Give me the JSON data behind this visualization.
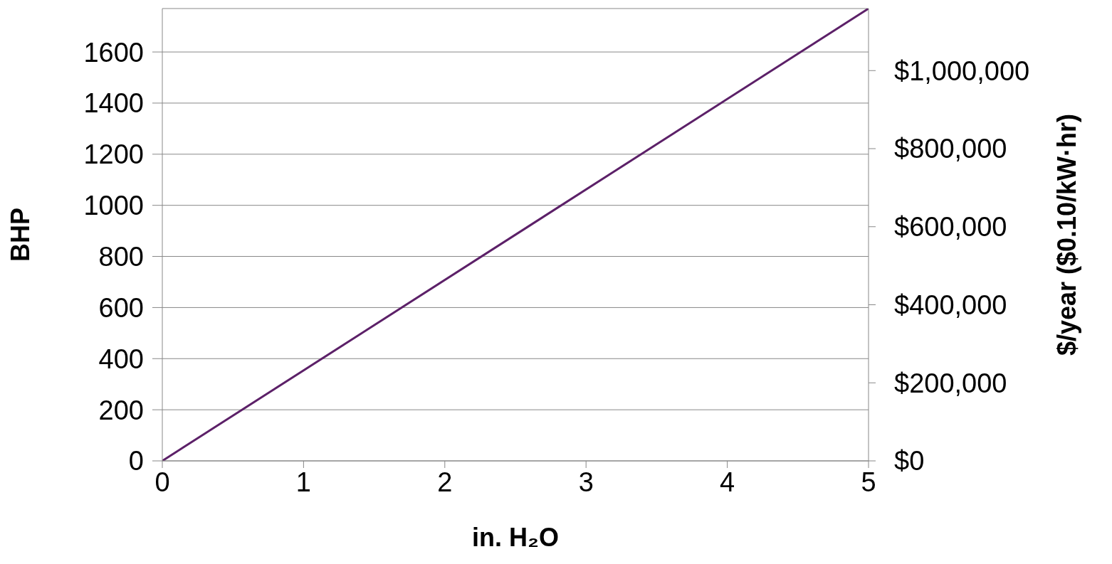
{
  "chart_data": {
    "type": "line",
    "xlabel": "in. H₂O",
    "ylabel": "BHP",
    "y2label": "$/year ($0.10/kW·hr)",
    "x": [
      0,
      5
    ],
    "series": [
      {
        "color": "#5c2068",
        "values": [
          0,
          1770
        ]
      }
    ],
    "xlim": [
      0,
      5
    ],
    "xticks": [
      0,
      1,
      2,
      3,
      4,
      5
    ],
    "ylim": [
      0,
      1770
    ],
    "yticks": [
      0,
      200,
      400,
      600,
      800,
      1000,
      1200,
      1400,
      1600
    ],
    "y2lim": [
      0,
      1159000
    ],
    "y2ticks": [
      {
        "value": 0,
        "label": "$0"
      },
      {
        "value": 200000,
        "label": "$200,000"
      },
      {
        "value": 400000,
        "label": "$400,000"
      },
      {
        "value": 600000,
        "label": "$600,000"
      },
      {
        "value": 800000,
        "label": "$800,000"
      },
      {
        "value": 1000000,
        "label": "$1,000,000"
      }
    ],
    "grid": "y",
    "legend": false,
    "marker": "none",
    "line_style": "solid"
  }
}
